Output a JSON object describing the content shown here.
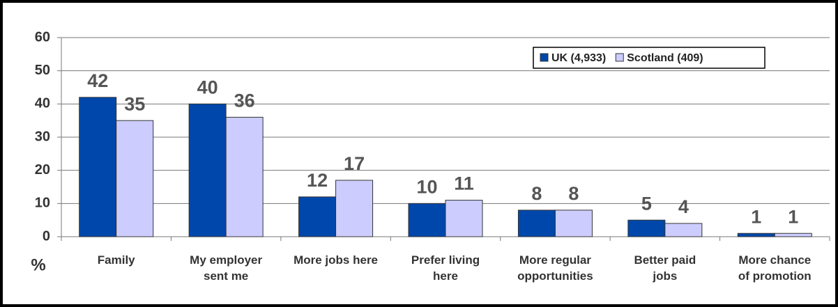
{
  "chart_data": {
    "type": "bar",
    "y_label": "%",
    "categories": [
      "Family",
      "My employer sent me",
      "More jobs here",
      "Prefer living here",
      "More regular opportunities",
      "Better paid jobs",
      "More chance of promotion"
    ],
    "series": [
      {
        "name": "UK (4,933)",
        "color": "#0047ab",
        "values": [
          42,
          40,
          12,
          10,
          8,
          5,
          1
        ]
      },
      {
        "name": "Scotland (409)",
        "color": "#ccccff",
        "values": [
          35,
          36,
          17,
          11,
          8,
          4,
          1
        ]
      }
    ],
    "ylim": [
      0,
      60
    ],
    "yticks": [
      0,
      10,
      20,
      30,
      40,
      50,
      60
    ],
    "grid": true,
    "legend": "top-right"
  }
}
